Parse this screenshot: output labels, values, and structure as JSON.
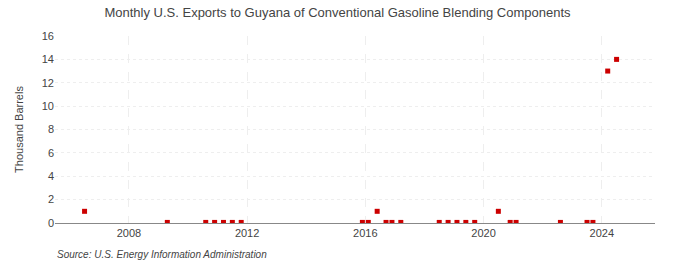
{
  "chart_data": {
    "type": "scatter",
    "title": "Monthly U.S. Exports to Guyana of Conventional Gasoline Blending Components",
    "ylabel": "Thousand Barrels",
    "annotations": [
      "Source: U.S. Energy Information Administration"
    ],
    "x": [
      2006.5,
      2009.3,
      2010.6,
      2010.9,
      2011.2,
      2011.5,
      2011.8,
      2015.9,
      2016.1,
      2016.4,
      2016.7,
      2016.9,
      2017.2,
      2018.5,
      2018.8,
      2019.1,
      2019.4,
      2019.7,
      2020.5,
      2020.9,
      2021.1,
      2022.6,
      2023.5,
      2023.7,
      2024.2,
      2024.5
    ],
    "values": [
      1.0,
      0.05,
      0.05,
      0.05,
      0.05,
      0.05,
      0.05,
      0.05,
      0.05,
      1.0,
      0.05,
      0.05,
      0.05,
      0.05,
      0.05,
      0.05,
      0.05,
      0.05,
      1.0,
      0.05,
      0.05,
      0.05,
      0.05,
      0.05,
      13.0,
      14.0
    ],
    "color": "#cc0000",
    "marker": "square",
    "xlim": [
      2005.5,
      2025.8
    ],
    "xticks": [
      2008,
      2012,
      2016,
      2020,
      2024
    ],
    "ylim": [
      0,
      16
    ],
    "yticks": [
      0,
      2,
      4,
      6,
      8,
      10,
      12,
      14,
      16
    ],
    "grid": true
  }
}
